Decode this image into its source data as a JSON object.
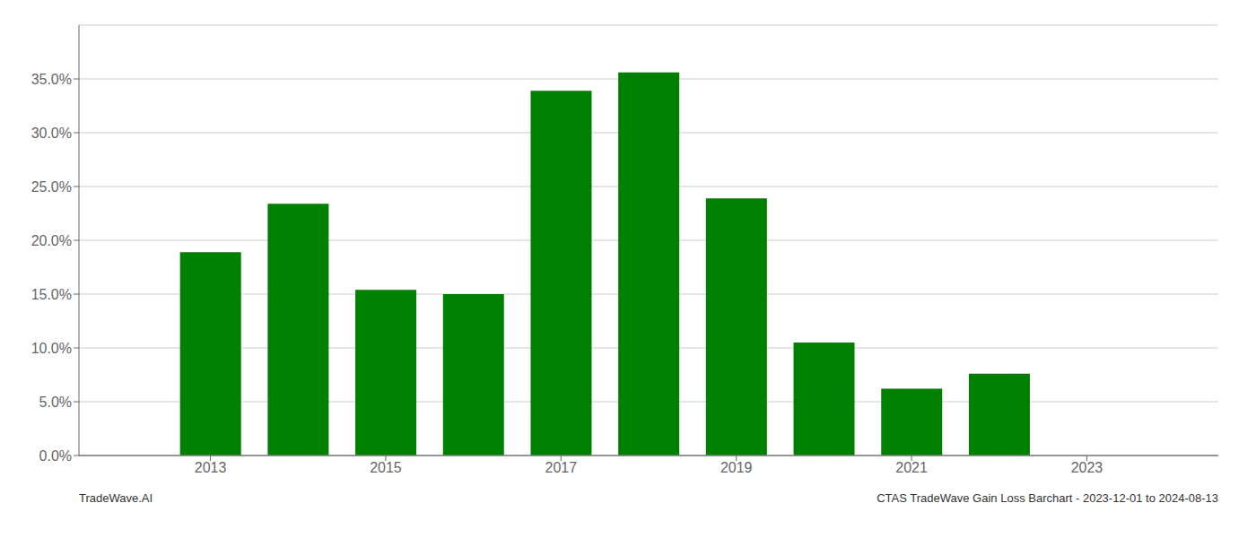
{
  "chart_data": {
    "type": "bar",
    "x": [
      2013,
      2014,
      2015,
      2016,
      2017,
      2018,
      2019,
      2020,
      2021,
      2022
    ],
    "values": [
      0.189,
      0.234,
      0.154,
      0.15,
      0.339,
      0.356,
      0.239,
      0.105,
      0.062,
      0.076
    ],
    "color": "#008000",
    "xlim": [
      2011.5,
      2024.5
    ],
    "xticks": [
      2013,
      2015,
      2017,
      2019,
      2021,
      2023
    ],
    "ylim": [
      0,
      0.4
    ],
    "yticks": [
      {
        "value": 0.0,
        "label": "0.0%"
      },
      {
        "value": 0.05,
        "label": "5.0%"
      },
      {
        "value": 0.1,
        "label": "10.0%"
      },
      {
        "value": 0.15,
        "label": "15.0%"
      },
      {
        "value": 0.2,
        "label": "20.0%"
      },
      {
        "value": 0.25,
        "label": "25.0%"
      },
      {
        "value": 0.3,
        "label": "30.0%"
      },
      {
        "value": 0.35,
        "label": "35.0%"
      }
    ],
    "grid": true,
    "annotations": [
      "TradeWave.AI",
      "CTAS TradeWave Gain Loss Barchart - 2023-12-01 to 2024-08-13"
    ]
  }
}
